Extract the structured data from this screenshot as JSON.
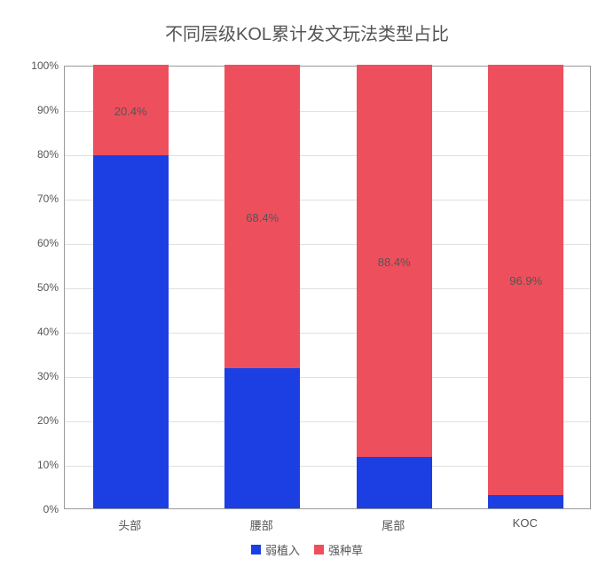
{
  "chart": {
    "type": "stacked-bar-100",
    "title": "不同层级KOL累计发文玩法类型占比",
    "title_color": "#555555",
    "title_fontsize": 20,
    "background_color": "#ffffff",
    "plot_border_color": "#9a9a9a",
    "grid_color": "#e0e0e0",
    "axis_label_color": "#555555",
    "axis_label_fontsize": 12,
    "x_label_fontsize": 13,
    "ylim": [
      0,
      100
    ],
    "ytick_step": 10,
    "y_tick_format_suffix": "%",
    "bar_width": 0.57,
    "categories": [
      "头部",
      "腰部",
      "尾部",
      "KOC"
    ],
    "series": [
      {
        "name": "弱植入",
        "color": "#1c3fe3",
        "values": [
          79.6,
          31.6,
          11.6,
          3.1
        ]
      },
      {
        "name": "强种草",
        "color": "#ee4f5d",
        "values": [
          20.4,
          68.4,
          88.4,
          96.9
        ]
      }
    ],
    "data_label_color": "#555555",
    "data_label_fontsize": 13,
    "show_data_labels_on_series_index": 1,
    "legend_fontsize": 13,
    "legend_position": "bottom"
  }
}
